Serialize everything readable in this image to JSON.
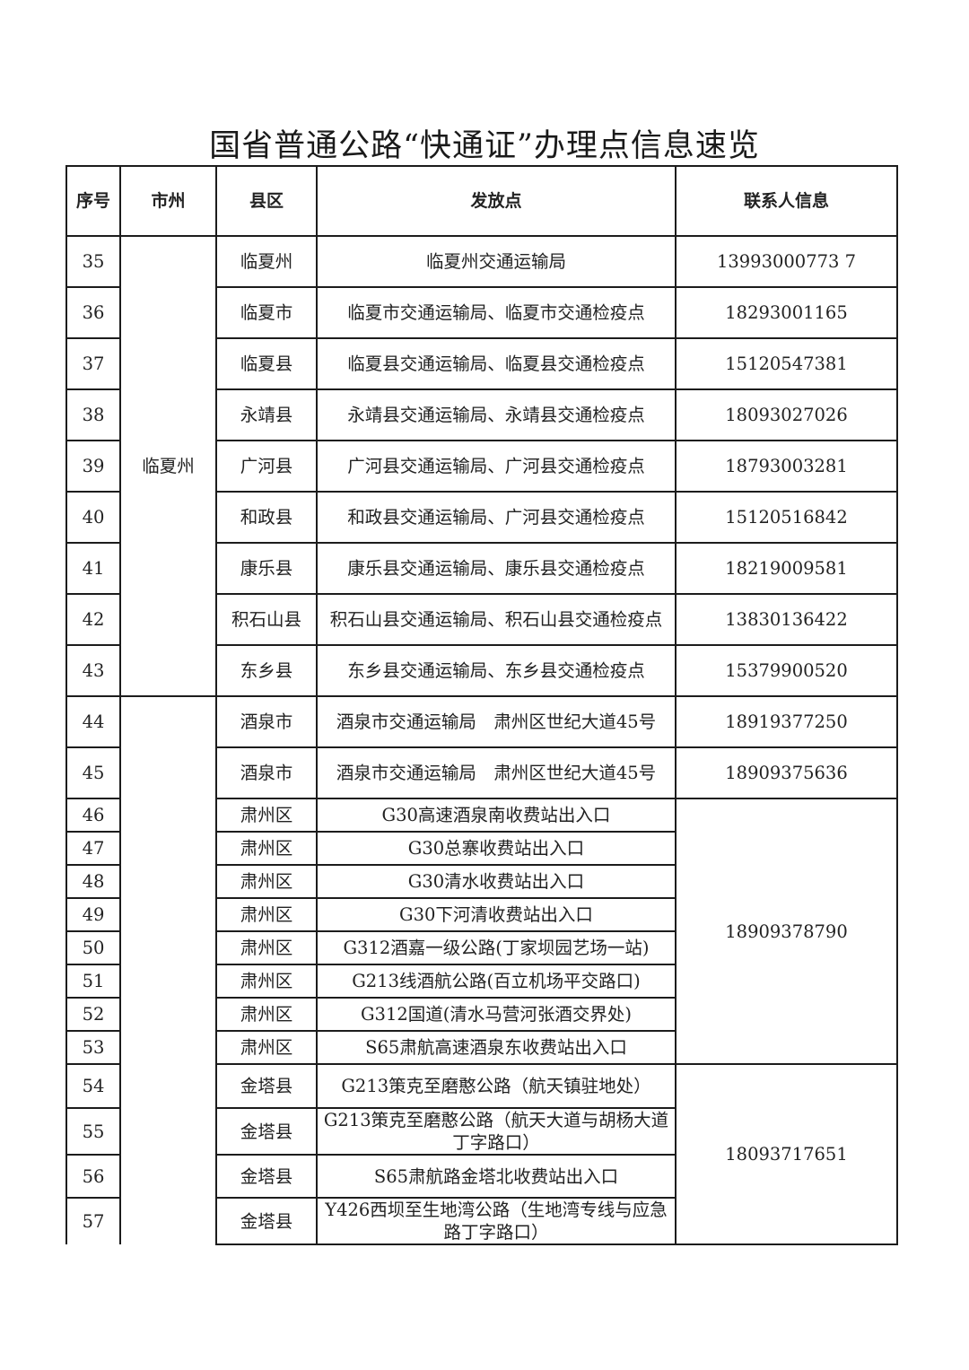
{
  "title": "国省普通公路“快通证”办理点信息速览",
  "headers": [
    "序号",
    "市州",
    "县区",
    "发放点",
    "联系人信息"
  ],
  "city_groups": [
    {
      "city": "临夏州",
      "rows_from": 0,
      "rows_count": 9
    },
    {
      "city": "",
      "rows_from": 9,
      "rows_count": 14
    }
  ],
  "contact_groups": [
    {
      "contact": "18909378790",
      "rows_from": 11,
      "rows_count": 8
    },
    {
      "contact": "18093717651",
      "rows_from": 19,
      "rows_count": 4
    }
  ],
  "rows": [
    {
      "no": "35",
      "county": "临夏州",
      "site": "临夏州交通运输局",
      "contact": "13993000773 7"
    },
    {
      "no": "36",
      "county": "临夏市",
      "site": "临夏市交通运输局、临夏市交通检疫点",
      "contact": "18293001165"
    },
    {
      "no": "37",
      "county": "临夏县",
      "site": "临夏县交通运输局、临夏县交通检疫点",
      "contact": "15120547381"
    },
    {
      "no": "38",
      "county": "永靖县",
      "site": "永靖县交通运输局、永靖县交通检疫点",
      "contact": "18093027026"
    },
    {
      "no": "39",
      "county": "广河县",
      "site": "广河县交通运输局、广河县交通检疫点",
      "contact": "18793003281"
    },
    {
      "no": "40",
      "county": "和政县",
      "site": "和政县交通运输局、广河县交通检疫点",
      "contact": "15120516842"
    },
    {
      "no": "41",
      "county": "康乐县",
      "site": "康乐县交通运输局、康乐县交通检疫点",
      "contact": "18219009581"
    },
    {
      "no": "42",
      "county": "积石山县",
      "site": "积石山县交通运输局、积石山县交通检疫点",
      "contact": "13830136422"
    },
    {
      "no": "43",
      "county": "东乡县",
      "site": "东乡县交通运输局、东乡县交通检疫点",
      "contact": "15379900520"
    },
    {
      "no": "44",
      "county": "酒泉市",
      "site": "酒泉市交通运输局　肃州区世纪大道45号",
      "contact": "18919377250"
    },
    {
      "no": "45",
      "county": "酒泉市",
      "site": "酒泉市交通运输局　肃州区世纪大道45号",
      "contact": "18909375636"
    },
    {
      "no": "46",
      "county": "肃州区",
      "site": "G30高速酒泉南收费站出入口"
    },
    {
      "no": "47",
      "county": "肃州区",
      "site": "G30总寨收费站出入口"
    },
    {
      "no": "48",
      "county": "肃州区",
      "site": "G30清水收费站出入口"
    },
    {
      "no": "49",
      "county": "肃州区",
      "site": "G30下河清收费站出入口"
    },
    {
      "no": "50",
      "county": "肃州区",
      "site": "G312酒嘉一级公路(丁家坝园艺场一站)"
    },
    {
      "no": "51",
      "county": "肃州区",
      "site": "G213线酒航公路(百立机场平交路口)"
    },
    {
      "no": "52",
      "county": "肃州区",
      "site": "G312国道(清水马营河张酒交界处)"
    },
    {
      "no": "53",
      "county": "肃州区",
      "site": "S65肃航高速酒泉东收费站出入口"
    },
    {
      "no": "54",
      "county": "金塔县",
      "site": "G213策克至磨憨公路（航天镇驻地处）"
    },
    {
      "no": "55",
      "county": "金塔县",
      "site": "G213策克至磨憨公路（航天大道与胡杨大道丁字路口）"
    },
    {
      "no": "56",
      "county": "金塔县",
      "site": "S65肃航路金塔北收费站出入口"
    },
    {
      "no": "57",
      "county": "金塔县",
      "site": "Y426西坝至生地湾公路（生地湾专线与应急路丁字路口）"
    }
  ]
}
